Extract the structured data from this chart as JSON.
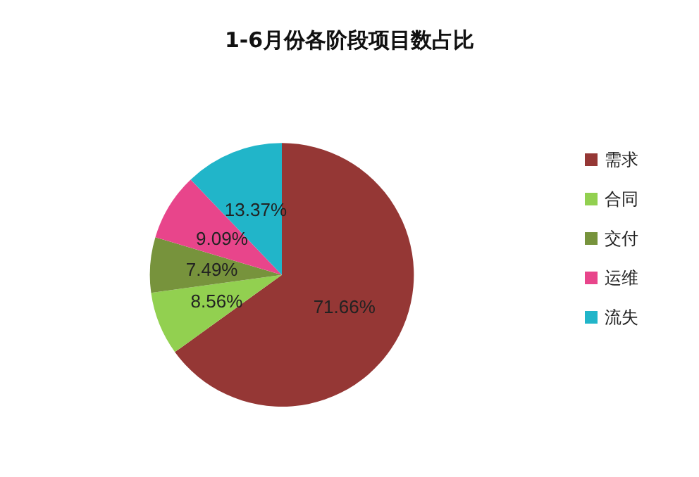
{
  "chart_data": {
    "type": "pie",
    "title": "1-6月份各阶段项目数占比",
    "categories": [
      "需求",
      "合同",
      "交付",
      "运维",
      "流失"
    ],
    "values": [
      71.66,
      8.56,
      7.49,
      9.09,
      13.37
    ],
    "value_labels": [
      "71.66%",
      "8.56%",
      "7.49%",
      "9.09%",
      "13.37%"
    ],
    "colors": [
      "#953735",
      "#92d050",
      "#77933c",
      "#e8458b",
      "#21b5c9"
    ],
    "legend": "right"
  }
}
